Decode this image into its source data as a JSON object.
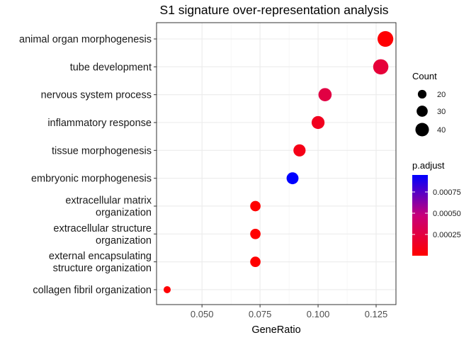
{
  "chart_data": {
    "type": "scatter",
    "title": "S1 signature over-representation analysis",
    "xlabel": "GeneRatio",
    "ylabel": "",
    "xlim": [
      0.031,
      0.134
    ],
    "x_ticks": [
      0.05,
      0.075,
      0.1,
      0.125
    ],
    "x_tick_labels": [
      "0.050",
      "0.075",
      "0.100",
      "0.125"
    ],
    "grid": true,
    "categories": [
      "animal organ morphogenesis",
      "tube development",
      "nervous system process",
      "inflammatory response",
      "tissue morphogenesis",
      "embryonic morphogenesis",
      "extracellular matrix\norganization",
      "extracellular structure\norganization",
      "external encapsulating\nstructure organization",
      "collagen fibril organization"
    ],
    "points": [
      {
        "term": "animal organ morphogenesis",
        "gene_ratio": 0.129,
        "count": 46,
        "p_adjust": 1e-05
      },
      {
        "term": "tube development",
        "gene_ratio": 0.127,
        "count": 44,
        "p_adjust": 0.00022
      },
      {
        "term": "nervous system process",
        "gene_ratio": 0.103,
        "count": 36,
        "p_adjust": 0.00026
      },
      {
        "term": "inflammatory response",
        "gene_ratio": 0.1,
        "count": 35,
        "p_adjust": 0.00012
      },
      {
        "term": "tissue morphogenesis",
        "gene_ratio": 0.092,
        "count": 32,
        "p_adjust": 9e-05
      },
      {
        "term": "embryonic morphogenesis",
        "gene_ratio": 0.089,
        "count": 31,
        "p_adjust": 0.00095
      },
      {
        "term": "extracellular matrix\norganization",
        "gene_ratio": 0.073,
        "count": 25,
        "p_adjust": 1e-06
      },
      {
        "term": "extracellular structure\norganization",
        "gene_ratio": 0.073,
        "count": 25,
        "p_adjust": 1e-06
      },
      {
        "term": "external encapsulating\nstructure organization",
        "gene_ratio": 0.073,
        "count": 25,
        "p_adjust": 1e-06
      },
      {
        "term": "collagen fibril organization",
        "gene_ratio": 0.035,
        "count": 12,
        "p_adjust": 1e-05
      }
    ],
    "size_legend": {
      "title": "Count",
      "values": [
        20,
        30,
        40
      ],
      "labels": [
        "20",
        "30",
        "40"
      ]
    },
    "color_legend": {
      "title": "p.adjust",
      "range": [
        0.0,
        0.00095
      ],
      "ticks": [
        0.00025,
        0.0005,
        0.00075
      ],
      "tick_labels": [
        "0.00025",
        "0.00050",
        "0.00075"
      ],
      "low_color": "#ff0000",
      "high_color": "#0000ff"
    },
    "legend_placement": "right"
  }
}
